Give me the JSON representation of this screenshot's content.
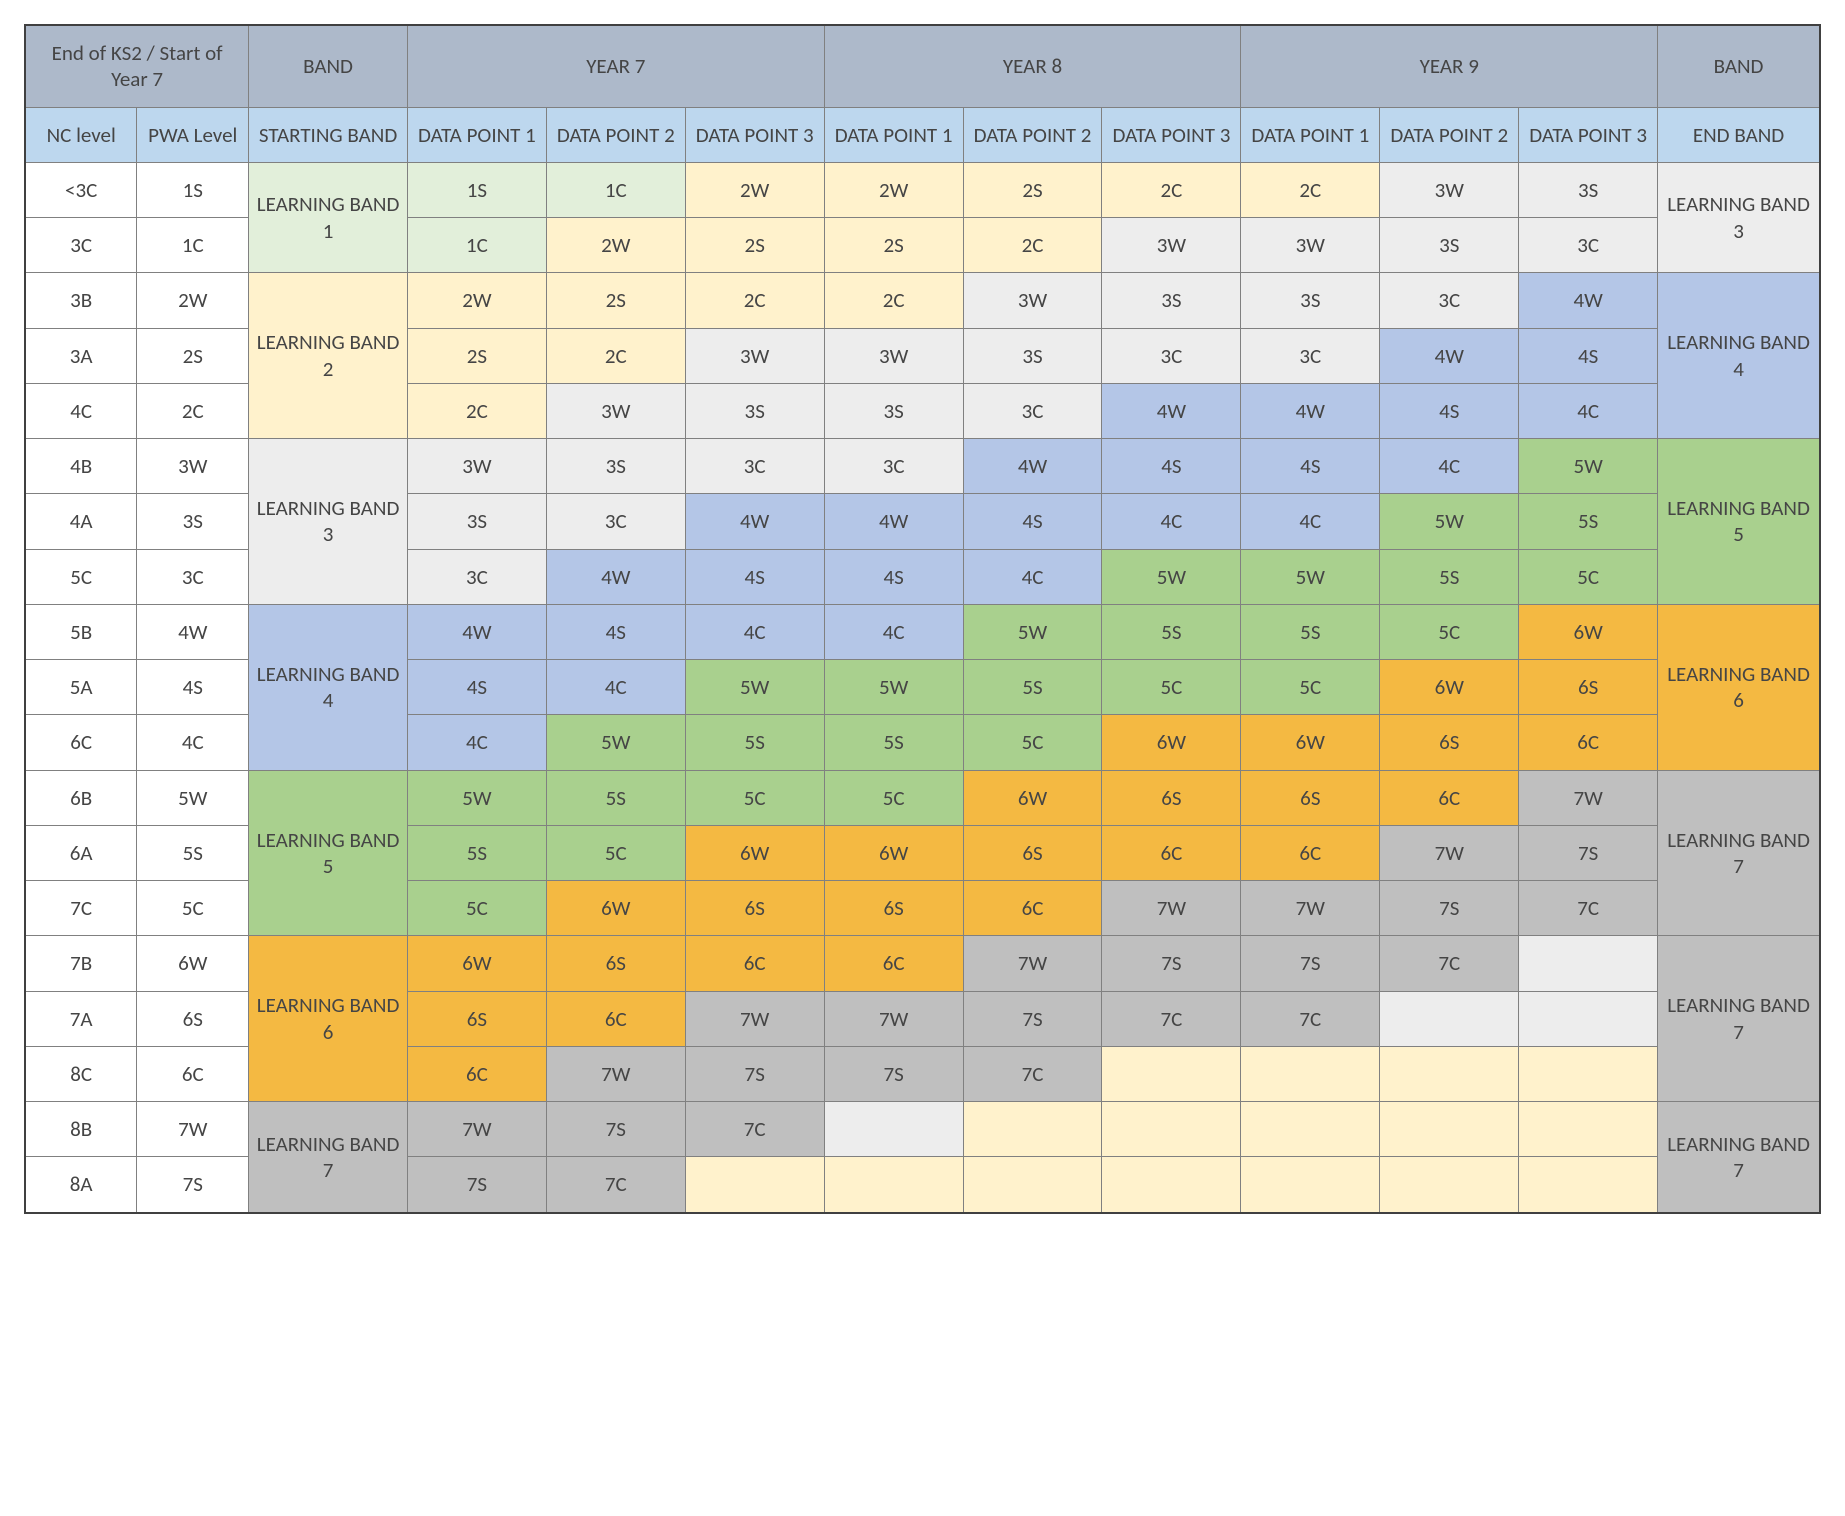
{
  "colors": {
    "header_top": "#adb9ca",
    "header_sub": "#bdd7ee",
    "band1": "#e2efda",
    "band2": "#fff2cc",
    "band3": "#ededed",
    "band4": "#b4c6e7",
    "band5": "#a9d08e",
    "band6": "#f4b942",
    "band7": "#bfbfbf",
    "white": "#ffffff",
    "border_outer": "#404040",
    "border_inner": "#808080",
    "text": "#454545"
  },
  "top_headers": {
    "ks2": "End of KS2 / Start of Year 7",
    "band": "BAND",
    "y7": "YEAR 7",
    "y8": "YEAR 8",
    "y9": "YEAR 9",
    "band_end": "BAND"
  },
  "sub_headers": {
    "nc": "NC level",
    "pwa": "PWA Level",
    "start": "STARTING BAND",
    "dp1": "DATA POINT 1",
    "dp2": "DATA POINT 2",
    "dp3": "DATA POINT 3",
    "end": "END BAND"
  },
  "start_bands": {
    "b1": "LEARNING BAND 1",
    "b2": "LEARNING BAND 2",
    "b3": "LEARNING BAND 3",
    "b4": "LEARNING BAND 4",
    "b5": "LEARNING BAND 5",
    "b6": "LEARNING BAND 6",
    "b7": "LEARNING BAND 7"
  },
  "end_bands": {
    "e3": "LEARNING BAND 3",
    "e4": "LEARNING BAND 4",
    "e5": "LEARNING BAND 5",
    "e6": "LEARNING BAND 6",
    "e7a": "LEARNING BAND 7",
    "e7b": "LEARNING BAND 7",
    "e7c": "LEARNING BAND 7"
  },
  "rows": [
    {
      "nc": "<3C",
      "pwa": "1S",
      "dp": [
        {
          "v": "1S",
          "b": "band1"
        },
        {
          "v": "1C",
          "b": "band1"
        },
        {
          "v": "2W",
          "b": "band2"
        },
        {
          "v": "2W",
          "b": "band2"
        },
        {
          "v": "2S",
          "b": "band2"
        },
        {
          "v": "2C",
          "b": "band2"
        },
        {
          "v": "2C",
          "b": "band2"
        },
        {
          "v": "3W",
          "b": "band3"
        },
        {
          "v": "3S",
          "b": "band3"
        }
      ]
    },
    {
      "nc": "3C",
      "pwa": "1C",
      "dp": [
        {
          "v": "1C",
          "b": "band1"
        },
        {
          "v": "2W",
          "b": "band2"
        },
        {
          "v": "2S",
          "b": "band2"
        },
        {
          "v": "2S",
          "b": "band2"
        },
        {
          "v": "2C",
          "b": "band2"
        },
        {
          "v": "3W",
          "b": "band3"
        },
        {
          "v": "3W",
          "b": "band3"
        },
        {
          "v": "3S",
          "b": "band3"
        },
        {
          "v": "3C",
          "b": "band3"
        }
      ]
    },
    {
      "nc": "3B",
      "pwa": "2W",
      "dp": [
        {
          "v": "2W",
          "b": "band2"
        },
        {
          "v": "2S",
          "b": "band2"
        },
        {
          "v": "2C",
          "b": "band2"
        },
        {
          "v": "2C",
          "b": "band2"
        },
        {
          "v": "3W",
          "b": "band3"
        },
        {
          "v": "3S",
          "b": "band3"
        },
        {
          "v": "3S",
          "b": "band3"
        },
        {
          "v": "3C",
          "b": "band3"
        },
        {
          "v": "4W",
          "b": "band4"
        }
      ]
    },
    {
      "nc": "3A",
      "pwa": "2S",
      "dp": [
        {
          "v": "2S",
          "b": "band2"
        },
        {
          "v": "2C",
          "b": "band2"
        },
        {
          "v": "3W",
          "b": "band3"
        },
        {
          "v": "3W",
          "b": "band3"
        },
        {
          "v": "3S",
          "b": "band3"
        },
        {
          "v": "3C",
          "b": "band3"
        },
        {
          "v": "3C",
          "b": "band3"
        },
        {
          "v": "4W",
          "b": "band4"
        },
        {
          "v": "4S",
          "b": "band4"
        }
      ]
    },
    {
      "nc": "4C",
      "pwa": "2C",
      "dp": [
        {
          "v": "2C",
          "b": "band2"
        },
        {
          "v": "3W",
          "b": "band3"
        },
        {
          "v": "3S",
          "b": "band3"
        },
        {
          "v": "3S",
          "b": "band3"
        },
        {
          "v": "3C",
          "b": "band3"
        },
        {
          "v": "4W",
          "b": "band4"
        },
        {
          "v": "4W",
          "b": "band4"
        },
        {
          "v": "4S",
          "b": "band4"
        },
        {
          "v": "4C",
          "b": "band4"
        }
      ]
    },
    {
      "nc": "4B",
      "pwa": "3W",
      "dp": [
        {
          "v": "3W",
          "b": "band3"
        },
        {
          "v": "3S",
          "b": "band3"
        },
        {
          "v": "3C",
          "b": "band3"
        },
        {
          "v": "3C",
          "b": "band3"
        },
        {
          "v": "4W",
          "b": "band4"
        },
        {
          "v": "4S",
          "b": "band4"
        },
        {
          "v": "4S",
          "b": "band4"
        },
        {
          "v": "4C",
          "b": "band4"
        },
        {
          "v": "5W",
          "b": "band5"
        }
      ]
    },
    {
      "nc": "4A",
      "pwa": "3S",
      "dp": [
        {
          "v": "3S",
          "b": "band3"
        },
        {
          "v": "3C",
          "b": "band3"
        },
        {
          "v": "4W",
          "b": "band4"
        },
        {
          "v": "4W",
          "b": "band4"
        },
        {
          "v": "4S",
          "b": "band4"
        },
        {
          "v": "4C",
          "b": "band4"
        },
        {
          "v": "4C",
          "b": "band4"
        },
        {
          "v": "5W",
          "b": "band5"
        },
        {
          "v": "5S",
          "b": "band5"
        }
      ]
    },
    {
      "nc": "5C",
      "pwa": "3C",
      "dp": [
        {
          "v": "3C",
          "b": "band3"
        },
        {
          "v": "4W",
          "b": "band4"
        },
        {
          "v": "4S",
          "b": "band4"
        },
        {
          "v": "4S",
          "b": "band4"
        },
        {
          "v": "4C",
          "b": "band4"
        },
        {
          "v": "5W",
          "b": "band5"
        },
        {
          "v": "5W",
          "b": "band5"
        },
        {
          "v": "5S",
          "b": "band5"
        },
        {
          "v": "5C",
          "b": "band5"
        }
      ]
    },
    {
      "nc": "5B",
      "pwa": "4W",
      "dp": [
        {
          "v": "4W",
          "b": "band4"
        },
        {
          "v": "4S",
          "b": "band4"
        },
        {
          "v": "4C",
          "b": "band4"
        },
        {
          "v": "4C",
          "b": "band4"
        },
        {
          "v": "5W",
          "b": "band5"
        },
        {
          "v": "5S",
          "b": "band5"
        },
        {
          "v": "5S",
          "b": "band5"
        },
        {
          "v": "5C",
          "b": "band5"
        },
        {
          "v": "6W",
          "b": "band6"
        }
      ]
    },
    {
      "nc": "5A",
      "pwa": "4S",
      "dp": [
        {
          "v": "4S",
          "b": "band4"
        },
        {
          "v": "4C",
          "b": "band4"
        },
        {
          "v": "5W",
          "b": "band5"
        },
        {
          "v": "5W",
          "b": "band5"
        },
        {
          "v": "5S",
          "b": "band5"
        },
        {
          "v": "5C",
          "b": "band5"
        },
        {
          "v": "5C",
          "b": "band5"
        },
        {
          "v": "6W",
          "b": "band6"
        },
        {
          "v": "6S",
          "b": "band6"
        }
      ]
    },
    {
      "nc": "6C",
      "pwa": "4C",
      "dp": [
        {
          "v": "4C",
          "b": "band4"
        },
        {
          "v": "5W",
          "b": "band5"
        },
        {
          "v": "5S",
          "b": "band5"
        },
        {
          "v": "5S",
          "b": "band5"
        },
        {
          "v": "5C",
          "b": "band5"
        },
        {
          "v": "6W",
          "b": "band6"
        },
        {
          "v": "6W",
          "b": "band6"
        },
        {
          "v": "6S",
          "b": "band6"
        },
        {
          "v": "6C",
          "b": "band6"
        }
      ]
    },
    {
      "nc": "6B",
      "pwa": "5W",
      "dp": [
        {
          "v": "5W",
          "b": "band5"
        },
        {
          "v": "5S",
          "b": "band5"
        },
        {
          "v": "5C",
          "b": "band5"
        },
        {
          "v": "5C",
          "b": "band5"
        },
        {
          "v": "6W",
          "b": "band6"
        },
        {
          "v": "6S",
          "b": "band6"
        },
        {
          "v": "6S",
          "b": "band6"
        },
        {
          "v": "6C",
          "b": "band6"
        },
        {
          "v": "7W",
          "b": "band7"
        }
      ]
    },
    {
      "nc": "6A",
      "pwa": "5S",
      "dp": [
        {
          "v": "5S",
          "b": "band5"
        },
        {
          "v": "5C",
          "b": "band5"
        },
        {
          "v": "6W",
          "b": "band6"
        },
        {
          "v": "6W",
          "b": "band6"
        },
        {
          "v": "6S",
          "b": "band6"
        },
        {
          "v": "6C",
          "b": "band6"
        },
        {
          "v": "6C",
          "b": "band6"
        },
        {
          "v": "7W",
          "b": "band7"
        },
        {
          "v": "7S",
          "b": "band7"
        }
      ]
    },
    {
      "nc": "7C",
      "pwa": "5C",
      "dp": [
        {
          "v": "5C",
          "b": "band5"
        },
        {
          "v": "6W",
          "b": "band6"
        },
        {
          "v": "6S",
          "b": "band6"
        },
        {
          "v": "6S",
          "b": "band6"
        },
        {
          "v": "6C",
          "b": "band6"
        },
        {
          "v": "7W",
          "b": "band7"
        },
        {
          "v": "7W",
          "b": "band7"
        },
        {
          "v": "7S",
          "b": "band7"
        },
        {
          "v": "7C",
          "b": "band7"
        }
      ]
    },
    {
      "nc": "7B",
      "pwa": "6W",
      "dp": [
        {
          "v": "6W",
          "b": "band6"
        },
        {
          "v": "6S",
          "b": "band6"
        },
        {
          "v": "6C",
          "b": "band6"
        },
        {
          "v": "6C",
          "b": "band6"
        },
        {
          "v": "7W",
          "b": "band7"
        },
        {
          "v": "7S",
          "b": "band7"
        },
        {
          "v": "7S",
          "b": "band7"
        },
        {
          "v": "7C",
          "b": "band7"
        },
        {
          "v": "",
          "b": "band3"
        }
      ]
    },
    {
      "nc": "7A",
      "pwa": "6S",
      "dp": [
        {
          "v": "6S",
          "b": "band6"
        },
        {
          "v": "6C",
          "b": "band6"
        },
        {
          "v": "7W",
          "b": "band7"
        },
        {
          "v": "7W",
          "b": "band7"
        },
        {
          "v": "7S",
          "b": "band7"
        },
        {
          "v": "7C",
          "b": "band7"
        },
        {
          "v": "7C",
          "b": "band7"
        },
        {
          "v": "",
          "b": "band3"
        },
        {
          "v": "",
          "b": "band3"
        }
      ]
    },
    {
      "nc": "8C",
      "pwa": "6C",
      "dp": [
        {
          "v": "6C",
          "b": "band6"
        },
        {
          "v": "7W",
          "b": "band7"
        },
        {
          "v": "7S",
          "b": "band7"
        },
        {
          "v": "7S",
          "b": "band7"
        },
        {
          "v": "7C",
          "b": "band7"
        },
        {
          "v": "",
          "b": "band2"
        },
        {
          "v": "",
          "b": "band2"
        },
        {
          "v": "",
          "b": "band2"
        },
        {
          "v": "",
          "b": "band2"
        }
      ]
    },
    {
      "nc": "8B",
      "pwa": "7W",
      "dp": [
        {
          "v": "7W",
          "b": "band7"
        },
        {
          "v": "7S",
          "b": "band7"
        },
        {
          "v": "7C",
          "b": "band7"
        },
        {
          "v": "",
          "b": "band3"
        },
        {
          "v": "",
          "b": "band2"
        },
        {
          "v": "",
          "b": "band2"
        },
        {
          "v": "",
          "b": "band2"
        },
        {
          "v": "",
          "b": "band2"
        },
        {
          "v": "",
          "b": "band2"
        }
      ]
    },
    {
      "nc": "8A",
      "pwa": "7S",
      "dp": [
        {
          "v": "7S",
          "b": "band7"
        },
        {
          "v": "7C",
          "b": "band7"
        },
        {
          "v": "",
          "b": "band2"
        },
        {
          "v": "",
          "b": "band2"
        },
        {
          "v": "",
          "b": "band2"
        },
        {
          "v": "",
          "b": "band2"
        },
        {
          "v": "",
          "b": "band2"
        },
        {
          "v": "",
          "b": "band2"
        },
        {
          "v": "",
          "b": "band2"
        }
      ]
    }
  ],
  "start_band_spans": [
    {
      "key": "b1",
      "cls": "band1",
      "rows": 2
    },
    {
      "key": "b2",
      "cls": "band2",
      "rows": 3
    },
    {
      "key": "b3",
      "cls": "band3",
      "rows": 3
    },
    {
      "key": "b4",
      "cls": "band4",
      "rows": 3
    },
    {
      "key": "b5",
      "cls": "band5",
      "rows": 3
    },
    {
      "key": "b6",
      "cls": "band6",
      "rows": 3
    },
    {
      "key": "b7",
      "cls": "band7",
      "rows": 2
    }
  ],
  "end_band_spans": [
    {
      "key": "e3",
      "cls": "band3",
      "rows": 2
    },
    {
      "key": "e4",
      "cls": "band4",
      "rows": 3
    },
    {
      "key": "e5",
      "cls": "band5",
      "rows": 3
    },
    {
      "key": "e6",
      "cls": "band6",
      "rows": 3
    },
    {
      "key": "e7a",
      "cls": "band7",
      "rows": 3
    },
    {
      "key": "e7b",
      "cls": "band7",
      "rows": 3
    },
    {
      "key": "e7c",
      "cls": "band7",
      "rows": 2
    }
  ]
}
